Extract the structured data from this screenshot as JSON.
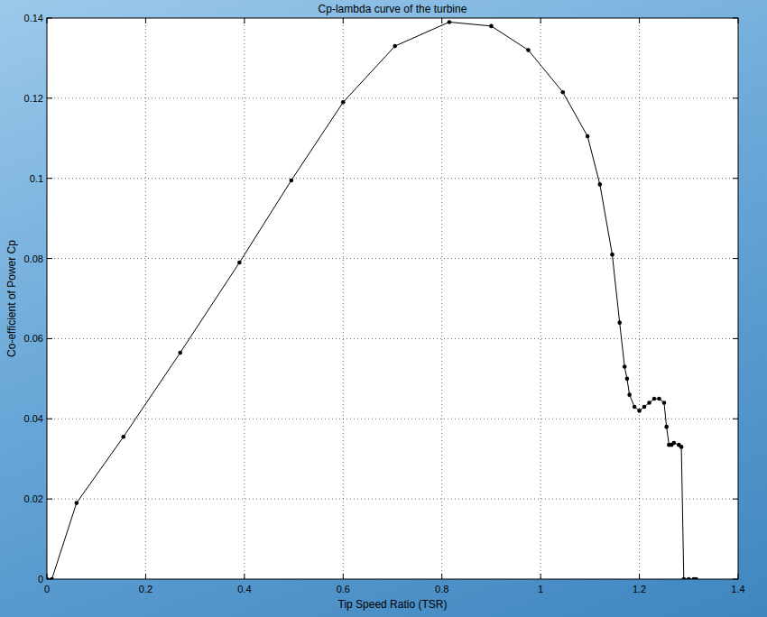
{
  "chart_data": {
    "type": "line",
    "title": "Cp-lambda curve of the turbine",
    "x_label": "Tip Speed Ratio (TSR)",
    "y_label": "Co-efficient of Power Cp",
    "x": [
      0,
      0.01,
      0.06,
      0.155,
      0.27,
      0.39,
      0.495,
      0.6,
      0.705,
      0.815,
      0.9,
      0.975,
      1.045,
      1.095,
      1.12,
      1.145,
      1.16,
      1.17,
      1.175,
      1.18,
      1.19,
      1.2,
      1.21,
      1.22,
      1.23,
      1.24,
      1.25,
      1.255,
      1.26,
      1.265,
      1.27,
      1.28,
      1.285,
      1.29,
      1.3,
      1.31,
      1.315
    ],
    "values": [
      0,
      0,
      0.019,
      0.0355,
      0.0565,
      0.079,
      0.0995,
      0.119,
      0.133,
      0.139,
      0.138,
      0.132,
      0.1215,
      0.1105,
      0.0985,
      0.081,
      0.064,
      0.053,
      0.05,
      0.046,
      0.043,
      0.042,
      0.043,
      0.044,
      0.045,
      0.045,
      0.044,
      0.038,
      0.0335,
      0.0335,
      0.034,
      0.0335,
      0.033,
      0,
      0,
      0,
      0
    ],
    "color": "#000000",
    "marker": "dot",
    "line_style": "solid",
    "xlim": [
      0,
      1.4
    ],
    "xticks": [
      0,
      0.2,
      0.4,
      0.6,
      0.8,
      1,
      1.2,
      1.4
    ],
    "ylim": [
      0,
      0.14
    ],
    "yticks": [
      0,
      0.02,
      0.04,
      0.06,
      0.08,
      0.1,
      0.12,
      0.14
    ],
    "grid": true
  }
}
